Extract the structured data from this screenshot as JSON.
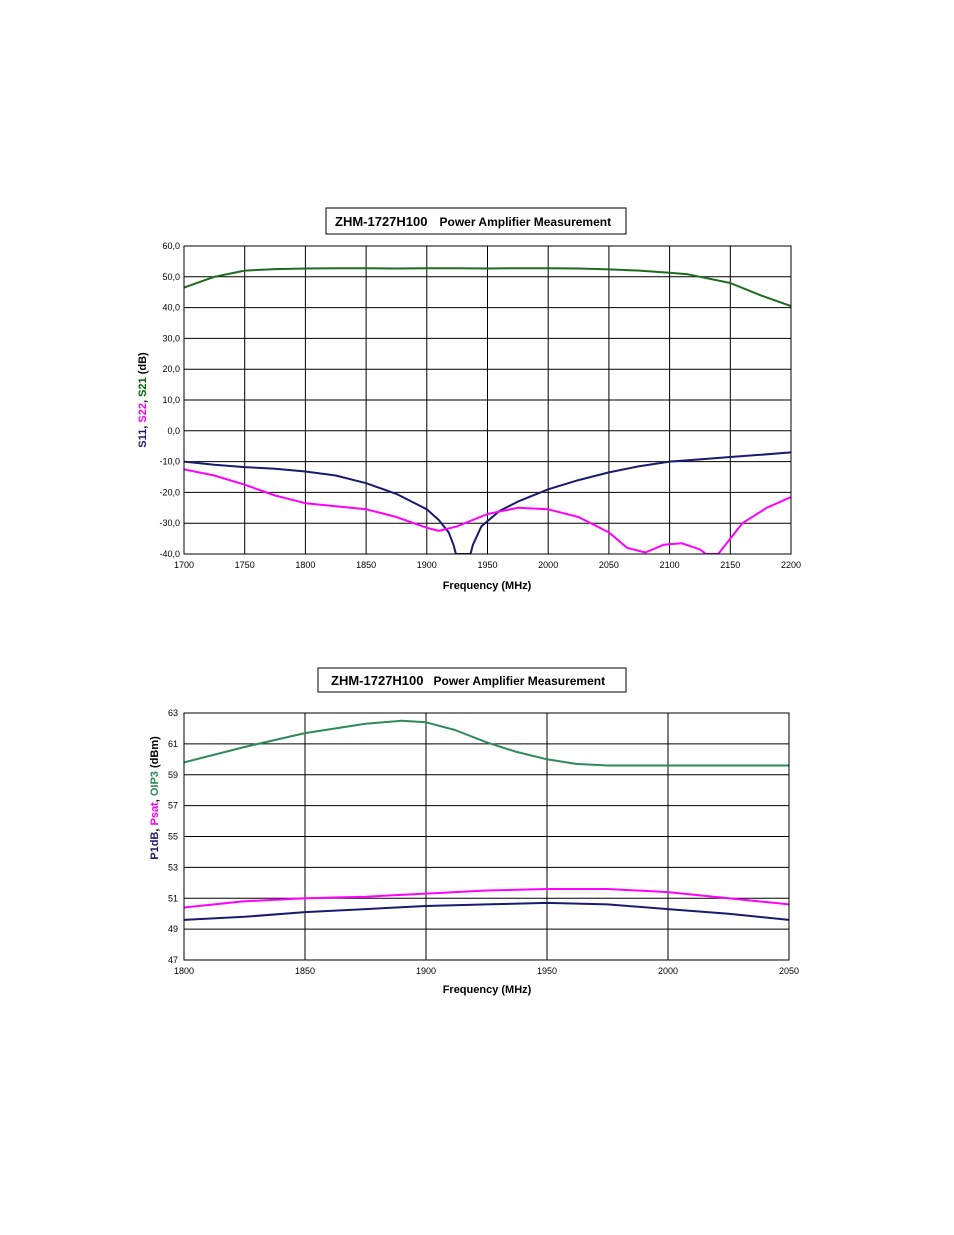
{
  "chart_data": [
    {
      "type": "line",
      "title": "ZHM-1727H100",
      "subtitle": "Power Amplifier Measurement",
      "xlabel": "Frequency (MHz)",
      "ylabel_parts": [
        {
          "text": "S11",
          "color": "#1a1a6e"
        },
        {
          "text": ", ",
          "color": "#000000"
        },
        {
          "text": "S22",
          "color": "#ff00ff"
        },
        {
          "text": ", ",
          "color": "#000000"
        },
        {
          "text": "S21",
          "color": "#006400"
        },
        {
          "text": " (dB)",
          "color": "#000000"
        }
      ],
      "xlim": [
        1700,
        2200
      ],
      "ylim": [
        -40,
        60
      ],
      "xticks": [
        1700,
        1750,
        1800,
        1850,
        1900,
        1950,
        2000,
        2050,
        2100,
        2150,
        2200
      ],
      "xtick_labels": [
        "1700",
        "1750",
        "1800",
        "1850",
        "1900",
        "1950",
        "2000",
        "2050",
        "2100",
        "2150",
        "2200"
      ],
      "yticks": [
        60,
        50,
        40,
        30,
        20,
        10,
        0,
        -10,
        -20,
        -30,
        -40
      ],
      "ytick_labels": [
        "60,0",
        "50,0",
        "40,0",
        "30,0",
        "20,0",
        "10,0",
        "0,0",
        "-10,0",
        "-20,0",
        "-30,0",
        "-40,0"
      ],
      "grid": true,
      "series": [
        {
          "name": "S21",
          "color": "#1e6b1e",
          "x": [
            1700,
            1725,
            1750,
            1775,
            1800,
            1825,
            1850,
            1875,
            1900,
            1925,
            1950,
            1975,
            2000,
            2025,
            2050,
            2075,
            2100,
            2115,
            2125,
            2150,
            2175,
            2200
          ],
          "y": [
            46.5,
            50,
            52,
            52.5,
            52.7,
            52.8,
            52.8,
            52.7,
            52.8,
            52.8,
            52.7,
            52.8,
            52.8,
            52.7,
            52.4,
            52,
            51.3,
            50.8,
            50,
            48,
            44,
            40.5
          ]
        },
        {
          "name": "S11",
          "color": "#1a1a6e",
          "x": [
            1700,
            1725,
            1750,
            1775,
            1800,
            1825,
            1850,
            1875,
            1900,
            1910,
            1918,
            1922,
            1924,
            1926,
            1934,
            1936,
            1938,
            1945,
            1960,
            1975,
            2000,
            2025,
            2050,
            2075,
            2100,
            2125,
            2150,
            2175,
            2200
          ],
          "y": [
            -10,
            -11,
            -11.8,
            -12.3,
            -13.2,
            -14.5,
            -17,
            -20.5,
            -25.5,
            -29,
            -33,
            -37,
            -40,
            -40,
            -40,
            -40,
            -37,
            -31,
            -26,
            -23,
            -19,
            -16,
            -13.5,
            -11.5,
            -10,
            -9.3,
            -8.5,
            -7.8,
            -7
          ]
        },
        {
          "name": "S22",
          "color": "#ff00ff",
          "x": [
            1700,
            1725,
            1750,
            1775,
            1800,
            1825,
            1850,
            1875,
            1900,
            1910,
            1925,
            1950,
            1975,
            2000,
            2025,
            2050,
            2065,
            2080,
            2095,
            2110,
            2125,
            2130,
            2140,
            2160,
            2180,
            2200
          ],
          "y": [
            -12.5,
            -14.5,
            -17.5,
            -21,
            -23.5,
            -24.5,
            -25.5,
            -28,
            -31.5,
            -32.5,
            -31,
            -27,
            -25,
            -25.5,
            -28,
            -33,
            -38,
            -39.5,
            -37,
            -36.5,
            -38.5,
            -40,
            -40,
            -30,
            -25,
            -21.5
          ]
        }
      ]
    },
    {
      "type": "line",
      "title": "ZHM-1727H100",
      "subtitle": "Power Amplifier Measurement",
      "xlabel": "Frequency (MHz)",
      "ylabel_parts": [
        {
          "text": "P1dB",
          "color": "#1a1a6e"
        },
        {
          "text": ", ",
          "color": "#000000"
        },
        {
          "text": "Psat",
          "color": "#ff00ff"
        },
        {
          "text": ", ",
          "color": "#000000"
        },
        {
          "text": "OIP3",
          "color": "#2e8b57"
        },
        {
          "text": " (dBm)",
          "color": "#000000"
        }
      ],
      "xlim": [
        1800,
        2050
      ],
      "ylim": [
        47,
        63
      ],
      "xticks": [
        1800,
        1850,
        1900,
        1950,
        2000,
        2050
      ],
      "xtick_labels": [
        "1800",
        "1850",
        "1900",
        "1950",
        "2000",
        "2050"
      ],
      "yticks": [
        63,
        61,
        59,
        57,
        55,
        53,
        51,
        49,
        47
      ],
      "ytick_labels": [
        "63",
        "61",
        "59",
        "57",
        "55",
        "53",
        "51",
        "49",
        "47"
      ],
      "grid": true,
      "series": [
        {
          "name": "OIP3",
          "color": "#2e8b57",
          "x": [
            1800,
            1825,
            1850,
            1875,
            1890,
            1900,
            1912,
            1925,
            1937,
            1950,
            1962,
            1975,
            2000,
            2025,
            2050
          ],
          "y": [
            59.8,
            60.8,
            61.7,
            62.3,
            62.5,
            62.4,
            61.9,
            61.1,
            60.5,
            60.0,
            59.7,
            59.6,
            59.6,
            59.6,
            59.6
          ]
        },
        {
          "name": "Psat",
          "color": "#ff00ff",
          "x": [
            1800,
            1825,
            1850,
            1875,
            1900,
            1925,
            1950,
            1975,
            2000,
            2025,
            2050
          ],
          "y": [
            50.4,
            50.8,
            51.0,
            51.1,
            51.3,
            51.5,
            51.6,
            51.6,
            51.4,
            51.0,
            50.6
          ]
        },
        {
          "name": "P1dB",
          "color": "#1a1a6e",
          "x": [
            1800,
            1825,
            1850,
            1875,
            1900,
            1925,
            1950,
            1975,
            2000,
            2025,
            2050
          ],
          "y": [
            49.6,
            49.8,
            50.1,
            50.3,
            50.5,
            50.6,
            50.7,
            50.6,
            50.3,
            50.0,
            49.6
          ]
        }
      ]
    }
  ]
}
